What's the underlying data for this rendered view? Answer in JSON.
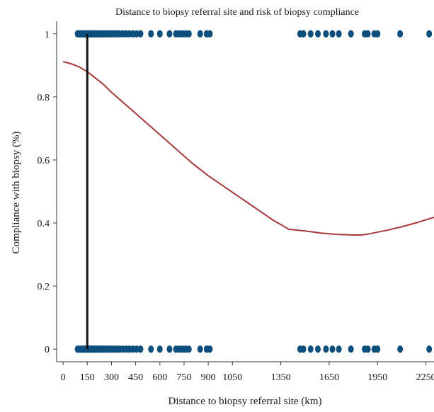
{
  "chart_data": {
    "type": "scatter",
    "title": "Distance to biopsy referral site and risk of biopsy compliance",
    "xlabel": "Distance to biopsy referral site (km)",
    "ylabel": "Compliance with biopsy (%)",
    "xlim": [
      -40,
      2300
    ],
    "ylim": [
      -0.04,
      1.04
    ],
    "x_ticks": [
      0,
      150,
      300,
      450,
      600,
      750,
      900,
      1050,
      1350,
      1650,
      1950,
      2250
    ],
    "x_tick_labels": [
      "0",
      "150",
      "300",
      "450",
      "600",
      "750",
      "900",
      "1050",
      "1350",
      "1650",
      "1950",
      "2250"
    ],
    "y_ticks": [
      0,
      0.2,
      0.4,
      0.6,
      0.8,
      1
    ],
    "y_tick_labels": [
      "0",
      "0.2",
      "0.4",
      "0.6",
      "0.8",
      "1"
    ],
    "grid": false,
    "colors": {
      "points": "#0d4f7c",
      "curve": "#a8393a",
      "reference_line": "#111111"
    },
    "series": [
      {
        "type": "scatter",
        "values": [
          {
            "x": 90,
            "y": 1
          },
          {
            "x": 100,
            "y": 1
          },
          {
            "x": 110,
            "y": 1
          },
          {
            "x": 118,
            "y": 1
          },
          {
            "x": 126,
            "y": 1
          },
          {
            "x": 134,
            "y": 1
          },
          {
            "x": 142,
            "y": 1
          },
          {
            "x": 150,
            "y": 1
          },
          {
            "x": 158,
            "y": 1
          },
          {
            "x": 166,
            "y": 1
          },
          {
            "x": 174,
            "y": 1
          },
          {
            "x": 182,
            "y": 1
          },
          {
            "x": 190,
            "y": 1
          },
          {
            "x": 200,
            "y": 1
          },
          {
            "x": 210,
            "y": 1
          },
          {
            "x": 220,
            "y": 1
          },
          {
            "x": 230,
            "y": 1
          },
          {
            "x": 240,
            "y": 1
          },
          {
            "x": 252,
            "y": 1
          },
          {
            "x": 264,
            "y": 1
          },
          {
            "x": 276,
            "y": 1
          },
          {
            "x": 290,
            "y": 1
          },
          {
            "x": 305,
            "y": 1
          },
          {
            "x": 320,
            "y": 1
          },
          {
            "x": 335,
            "y": 1
          },
          {
            "x": 350,
            "y": 1
          },
          {
            "x": 370,
            "y": 1
          },
          {
            "x": 390,
            "y": 1
          },
          {
            "x": 410,
            "y": 1
          },
          {
            "x": 432,
            "y": 1
          },
          {
            "x": 455,
            "y": 1
          },
          {
            "x": 480,
            "y": 1
          },
          {
            "x": 545,
            "y": 1
          },
          {
            "x": 600,
            "y": 1
          },
          {
            "x": 660,
            "y": 1
          },
          {
            "x": 700,
            "y": 1
          },
          {
            "x": 720,
            "y": 1
          },
          {
            "x": 740,
            "y": 1
          },
          {
            "x": 760,
            "y": 1
          },
          {
            "x": 780,
            "y": 1
          },
          {
            "x": 850,
            "y": 1
          },
          {
            "x": 890,
            "y": 1
          },
          {
            "x": 910,
            "y": 1
          },
          {
            "x": 1470,
            "y": 1
          },
          {
            "x": 1490,
            "y": 1
          },
          {
            "x": 1535,
            "y": 1
          },
          {
            "x": 1580,
            "y": 1
          },
          {
            "x": 1630,
            "y": 1
          },
          {
            "x": 1670,
            "y": 1
          },
          {
            "x": 1710,
            "y": 1
          },
          {
            "x": 1785,
            "y": 1
          },
          {
            "x": 1870,
            "y": 1
          },
          {
            "x": 1890,
            "y": 1
          },
          {
            "x": 1930,
            "y": 1
          },
          {
            "x": 1950,
            "y": 1
          },
          {
            "x": 2090,
            "y": 1
          },
          {
            "x": 2270,
            "y": 1
          },
          {
            "x": 90,
            "y": 0
          },
          {
            "x": 100,
            "y": 0
          },
          {
            "x": 110,
            "y": 0
          },
          {
            "x": 118,
            "y": 0
          },
          {
            "x": 126,
            "y": 0
          },
          {
            "x": 134,
            "y": 0
          },
          {
            "x": 142,
            "y": 0
          },
          {
            "x": 150,
            "y": 0
          },
          {
            "x": 158,
            "y": 0
          },
          {
            "x": 166,
            "y": 0
          },
          {
            "x": 174,
            "y": 0
          },
          {
            "x": 182,
            "y": 0
          },
          {
            "x": 190,
            "y": 0
          },
          {
            "x": 200,
            "y": 0
          },
          {
            "x": 210,
            "y": 0
          },
          {
            "x": 220,
            "y": 0
          },
          {
            "x": 230,
            "y": 0
          },
          {
            "x": 240,
            "y": 0
          },
          {
            "x": 252,
            "y": 0
          },
          {
            "x": 264,
            "y": 0
          },
          {
            "x": 276,
            "y": 0
          },
          {
            "x": 290,
            "y": 0
          },
          {
            "x": 305,
            "y": 0
          },
          {
            "x": 320,
            "y": 0
          },
          {
            "x": 335,
            "y": 0
          },
          {
            "x": 350,
            "y": 0
          },
          {
            "x": 370,
            "y": 0
          },
          {
            "x": 390,
            "y": 0
          },
          {
            "x": 410,
            "y": 0
          },
          {
            "x": 432,
            "y": 0
          },
          {
            "x": 455,
            "y": 0
          },
          {
            "x": 480,
            "y": 0
          },
          {
            "x": 545,
            "y": 0
          },
          {
            "x": 600,
            "y": 0
          },
          {
            "x": 660,
            "y": 0
          },
          {
            "x": 700,
            "y": 0
          },
          {
            "x": 720,
            "y": 0
          },
          {
            "x": 740,
            "y": 0
          },
          {
            "x": 760,
            "y": 0
          },
          {
            "x": 780,
            "y": 0
          },
          {
            "x": 850,
            "y": 0
          },
          {
            "x": 890,
            "y": 0
          },
          {
            "x": 910,
            "y": 0
          },
          {
            "x": 1470,
            "y": 0
          },
          {
            "x": 1490,
            "y": 0
          },
          {
            "x": 1535,
            "y": 0
          },
          {
            "x": 1580,
            "y": 0
          },
          {
            "x": 1630,
            "y": 0
          },
          {
            "x": 1670,
            "y": 0
          },
          {
            "x": 1710,
            "y": 0
          },
          {
            "x": 1785,
            "y": 0
          },
          {
            "x": 1870,
            "y": 0
          },
          {
            "x": 1890,
            "y": 0
          },
          {
            "x": 1930,
            "y": 0
          },
          {
            "x": 1950,
            "y": 0
          },
          {
            "x": 2090,
            "y": 0
          },
          {
            "x": 2270,
            "y": 0
          }
        ]
      },
      {
        "type": "line",
        "x": [
          0,
          50,
          100,
          150,
          200,
          250,
          300,
          400,
          500,
          600,
          700,
          800,
          900,
          1000,
          1100,
          1200,
          1300,
          1400,
          1500,
          1600,
          1700,
          1800,
          1850,
          1900,
          2000,
          2100,
          2200,
          2300
        ],
        "y": [
          0.912,
          0.905,
          0.895,
          0.88,
          0.86,
          0.84,
          0.815,
          0.77,
          0.725,
          0.68,
          0.635,
          0.59,
          0.55,
          0.515,
          0.48,
          0.445,
          0.41,
          0.38,
          0.375,
          0.368,
          0.364,
          0.362,
          0.362,
          0.366,
          0.376,
          0.388,
          0.402,
          0.418
        ]
      },
      {
        "type": "reference_line",
        "x": 150,
        "y_range": [
          0,
          1
        ]
      }
    ]
  }
}
